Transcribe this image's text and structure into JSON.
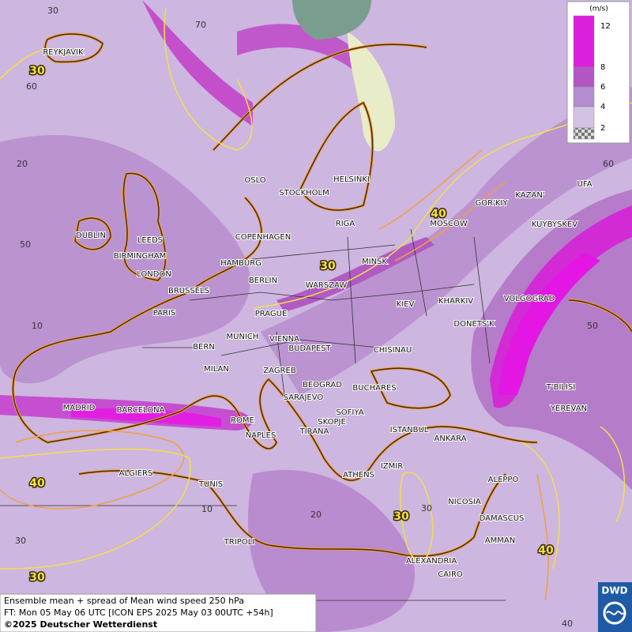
{
  "legend": {
    "unit": "(m/s)",
    "levels": [
      12,
      8,
      6,
      4,
      2
    ]
  },
  "cities": [
    "REYKJAVIK",
    "OSLO",
    "STOCKHOLM",
    "HELSINKI",
    "DUBLIN",
    "LEEDS",
    "BIRMINGHAM",
    "LONDON",
    "COPENHAGEN",
    "HAMBURG",
    "RIGA",
    "MOSCOW",
    "GOR'KIY",
    "KAZAN'",
    "UFA",
    "KUYBYSKEV",
    "MINSK",
    "BERLIN",
    "WARSZAW",
    "BRUSSELS",
    "PARIS",
    "PRAGUE",
    "KIEV",
    "KHARKIV",
    "VOLGOGRAD",
    "DONETS'K",
    "MUNICH",
    "VIENNA",
    "BERN",
    "BUDAPEST",
    "CHISINAU",
    "MILAN",
    "ZAGREB",
    "BEOGRAD",
    "BUCHARES",
    "T'BILISI",
    "SARAJEVO",
    "MADRID",
    "BARCELONA",
    "SOFIYA",
    "YEREVAN",
    "ROME",
    "SKOPJE",
    "ISTANBUL",
    "TIRANA",
    "NAPLES",
    "ANKARA",
    "ALGIERS",
    "IZMIR",
    "ATHENS",
    "ALEPPO",
    "TUNIS",
    "NICOSIA",
    "DAMASCUS",
    "TRIPOLI",
    "AMMAN",
    "ALEXANDRIA",
    "CAIRO"
  ],
  "graticule_labels": [
    "30",
    "70",
    "60",
    "20",
    "50",
    "10",
    "60",
    "50",
    "40",
    "30",
    "20",
    "10",
    "30"
  ],
  "contour_labels": [
    "30",
    "40",
    "30",
    "40",
    "30",
    "40",
    "30"
  ],
  "footer": {
    "line1": "Ensemble mean + spread of Mean wind speed 250 hPa",
    "line2": "FT: Mon 05 May 06 UTC [ICON EPS 2025 May 03 00UTC +54h]",
    "line3": "©2025 Deutscher Wetterdienst"
  },
  "logo": "DWD"
}
